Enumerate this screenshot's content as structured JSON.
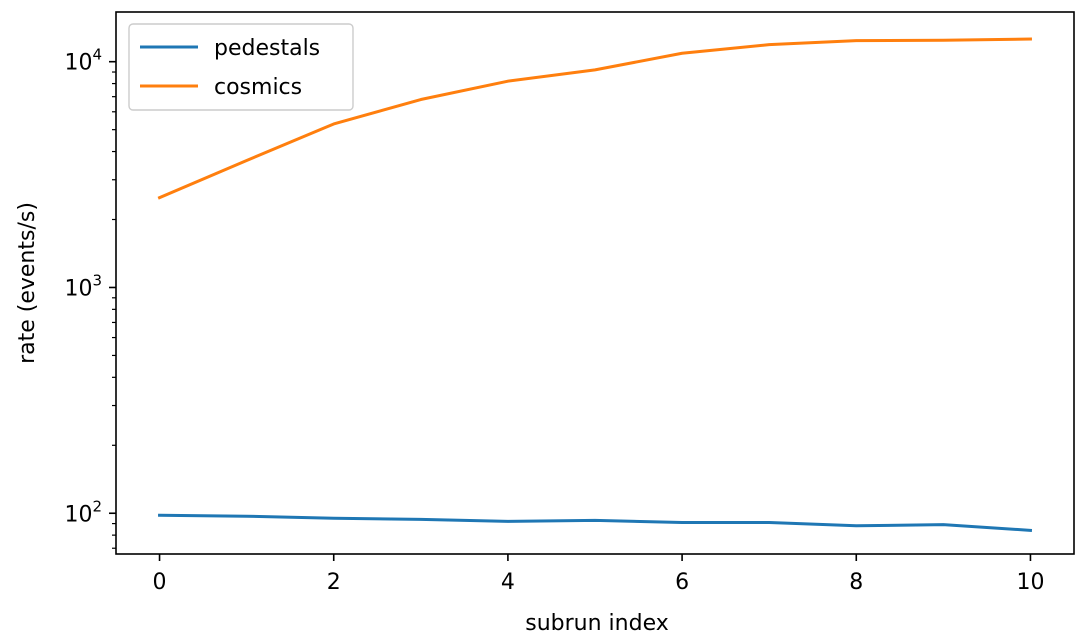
{
  "chart_data": {
    "type": "line",
    "title": "",
    "xlabel": "subrun index",
    "ylabel": "rate (events/s)",
    "xlim": [
      -0.5,
      10.5
    ],
    "ylim": [
      66,
      16600
    ],
    "yscale": "log",
    "grid": false,
    "legend_position": "top-left",
    "x": [
      0,
      1,
      2,
      3,
      4,
      5,
      6,
      7,
      8,
      9,
      10
    ],
    "x_ticks": [
      0,
      2,
      4,
      6,
      8,
      10
    ],
    "x_tick_labels": [
      "0",
      "2",
      "4",
      "6",
      "8",
      "10"
    ],
    "y_major_ticks": [
      100,
      1000,
      10000
    ],
    "y_tick_base": "10",
    "y_tick_exponents": [
      "2",
      "3",
      "4"
    ],
    "series": [
      {
        "name": "pedestals",
        "color": "#1f77b4",
        "values": [
          98,
          97,
          95,
          94,
          92,
          93,
          91,
          91,
          88,
          89,
          84
        ]
      },
      {
        "name": "cosmics",
        "color": "#ff7f0e",
        "values": [
          2500,
          3650,
          5300,
          6800,
          8200,
          9200,
          10900,
          11900,
          12400,
          12450,
          12600
        ]
      }
    ]
  }
}
